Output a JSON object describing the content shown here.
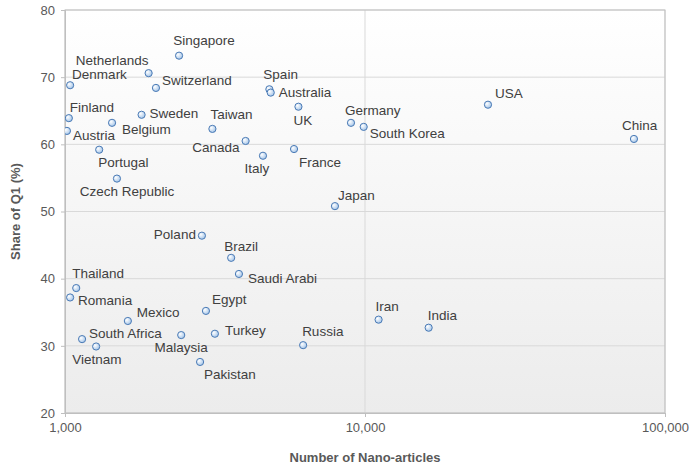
{
  "chart_data": {
    "type": "scatter",
    "x_label": "Number of Nano-articles",
    "y_label": "Share of Q1 (%)",
    "log": "x",
    "grid": true,
    "color": "#a9c8ea",
    "marker": "circle",
    "xlim": [
      1000,
      100000
    ],
    "xticks": [
      {
        "value": 1000,
        "label": "1,000"
      },
      {
        "value": 10000,
        "label": "10,000"
      },
      {
        "value": 100000,
        "label": "100,000"
      }
    ],
    "ylim": [
      20,
      80
    ],
    "yticks": [
      20,
      30,
      40,
      50,
      60,
      70,
      80
    ],
    "labels": [
      "Singapore",
      "Netherlands",
      "Denmark",
      "Switzerland",
      "Spain",
      "Australia",
      "UK",
      "Finland",
      "Sweden",
      "Belgium",
      "Taiwan",
      "Austria",
      "Canada",
      "Portugal",
      "Italy",
      "France",
      "Germany",
      "South Korea",
      "USA",
      "China",
      "Czech Republic",
      "Japan",
      "Poland",
      "Brazil",
      "Saudi Arabi",
      "Thailand",
      "Romania",
      "Egypt",
      "Mexico",
      "Iran",
      "India",
      "South Africa",
      "Malaysia",
      "Turkey",
      "Vietnam",
      "Russia",
      "Pakistan"
    ],
    "x": [
      2400,
      1900,
      1040,
      2010,
      4800,
      4850,
      6000,
      1030,
      1800,
      1435,
      3100,
      1015,
      4000,
      1300,
      4570,
      5800,
      8980,
      9900,
      25700,
      78800,
      1490,
      7940,
      2860,
      3580,
      3800,
      1090,
      1040,
      2950,
      1620,
      11100,
      16300,
      1140,
      2440,
      3160,
      1270,
      6220,
      2820
    ],
    "values": [
      73.2,
      70.6,
      68.8,
      68.4,
      68.2,
      67.7,
      65.6,
      63.9,
      64.4,
      63.2,
      62.3,
      62.0,
      60.5,
      59.2,
      58.3,
      59.3,
      63.2,
      62.6,
      65.9,
      60.8,
      54.9,
      50.8,
      46.4,
      43.1,
      40.7,
      38.6,
      37.2,
      35.2,
      33.7,
      33.9,
      32.7,
      31.0,
      31.6,
      31.8,
      29.9,
      30.1,
      27.6
    ]
  }
}
